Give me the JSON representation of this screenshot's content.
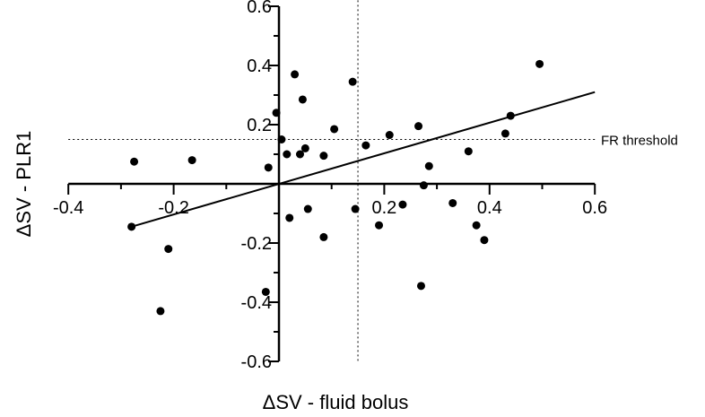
{
  "chart_data": {
    "type": "scatter",
    "xlabel": "ΔSV - fluid bolus",
    "ylabel": "ΔSV - PLR1",
    "xlim": [
      -0.4,
      0.6
    ],
    "ylim": [
      -0.6,
      0.6
    ],
    "x_ticks": [
      -0.4,
      -0.2,
      0.2,
      0.4,
      0.6
    ],
    "y_ticks": [
      0.6,
      0.4,
      0.2,
      -0.2,
      -0.4,
      -0.6
    ],
    "x_tick_labels": [
      "-0.4",
      "-0.2",
      "0.2",
      "0.4",
      "0.6"
    ],
    "y_tick_labels": [
      "0.6",
      "0.4",
      "0.2",
      "-0.2",
      "-0.4",
      "-0.6"
    ],
    "grid": false,
    "points": [
      {
        "x": -0.275,
        "y": 0.075
      },
      {
        "x": -0.165,
        "y": 0.08
      },
      {
        "x": -0.28,
        "y": -0.145
      },
      {
        "x": -0.21,
        "y": -0.22
      },
      {
        "x": -0.225,
        "y": -0.43
      },
      {
        "x": -0.025,
        "y": -0.365
      },
      {
        "x": -0.02,
        "y": 0.055
      },
      {
        "x": -0.005,
        "y": 0.24
      },
      {
        "x": 0.005,
        "y": 0.15
      },
      {
        "x": 0.015,
        "y": 0.1
      },
      {
        "x": 0.03,
        "y": 0.37
      },
      {
        "x": 0.04,
        "y": 0.1
      },
      {
        "x": 0.045,
        "y": 0.285
      },
      {
        "x": 0.05,
        "y": 0.12
      },
      {
        "x": 0.085,
        "y": 0.095
      },
      {
        "x": 0.105,
        "y": 0.185
      },
      {
        "x": 0.14,
        "y": 0.345
      },
      {
        "x": 0.165,
        "y": 0.13
      },
      {
        "x": 0.21,
        "y": 0.165
      },
      {
        "x": 0.265,
        "y": 0.195
      },
      {
        "x": 0.285,
        "y": 0.06
      },
      {
        "x": 0.36,
        "y": 0.11
      },
      {
        "x": 0.43,
        "y": 0.17
      },
      {
        "x": 0.44,
        "y": 0.23
      },
      {
        "x": 0.495,
        "y": 0.405
      },
      {
        "x": 0.275,
        "y": -0.005
      },
      {
        "x": 0.02,
        "y": -0.115
      },
      {
        "x": 0.055,
        "y": -0.085
      },
      {
        "x": 0.085,
        "y": -0.18
      },
      {
        "x": 0.145,
        "y": -0.085
      },
      {
        "x": 0.19,
        "y": -0.14
      },
      {
        "x": 0.235,
        "y": -0.07
      },
      {
        "x": 0.33,
        "y": -0.065
      },
      {
        "x": 0.375,
        "y": -0.14
      },
      {
        "x": 0.39,
        "y": -0.19
      },
      {
        "x": 0.27,
        "y": -0.345
      }
    ],
    "regression_line": {
      "x": [
        -0.28,
        0.6
      ],
      "y": [
        -0.145,
        0.31
      ]
    },
    "reference_lines": [
      {
        "orientation": "vertical",
        "x": 0.15,
        "style": "dotted"
      },
      {
        "orientation": "horizontal",
        "y": 0.15,
        "style": "dotted",
        "label": "FR threshold"
      }
    ]
  }
}
